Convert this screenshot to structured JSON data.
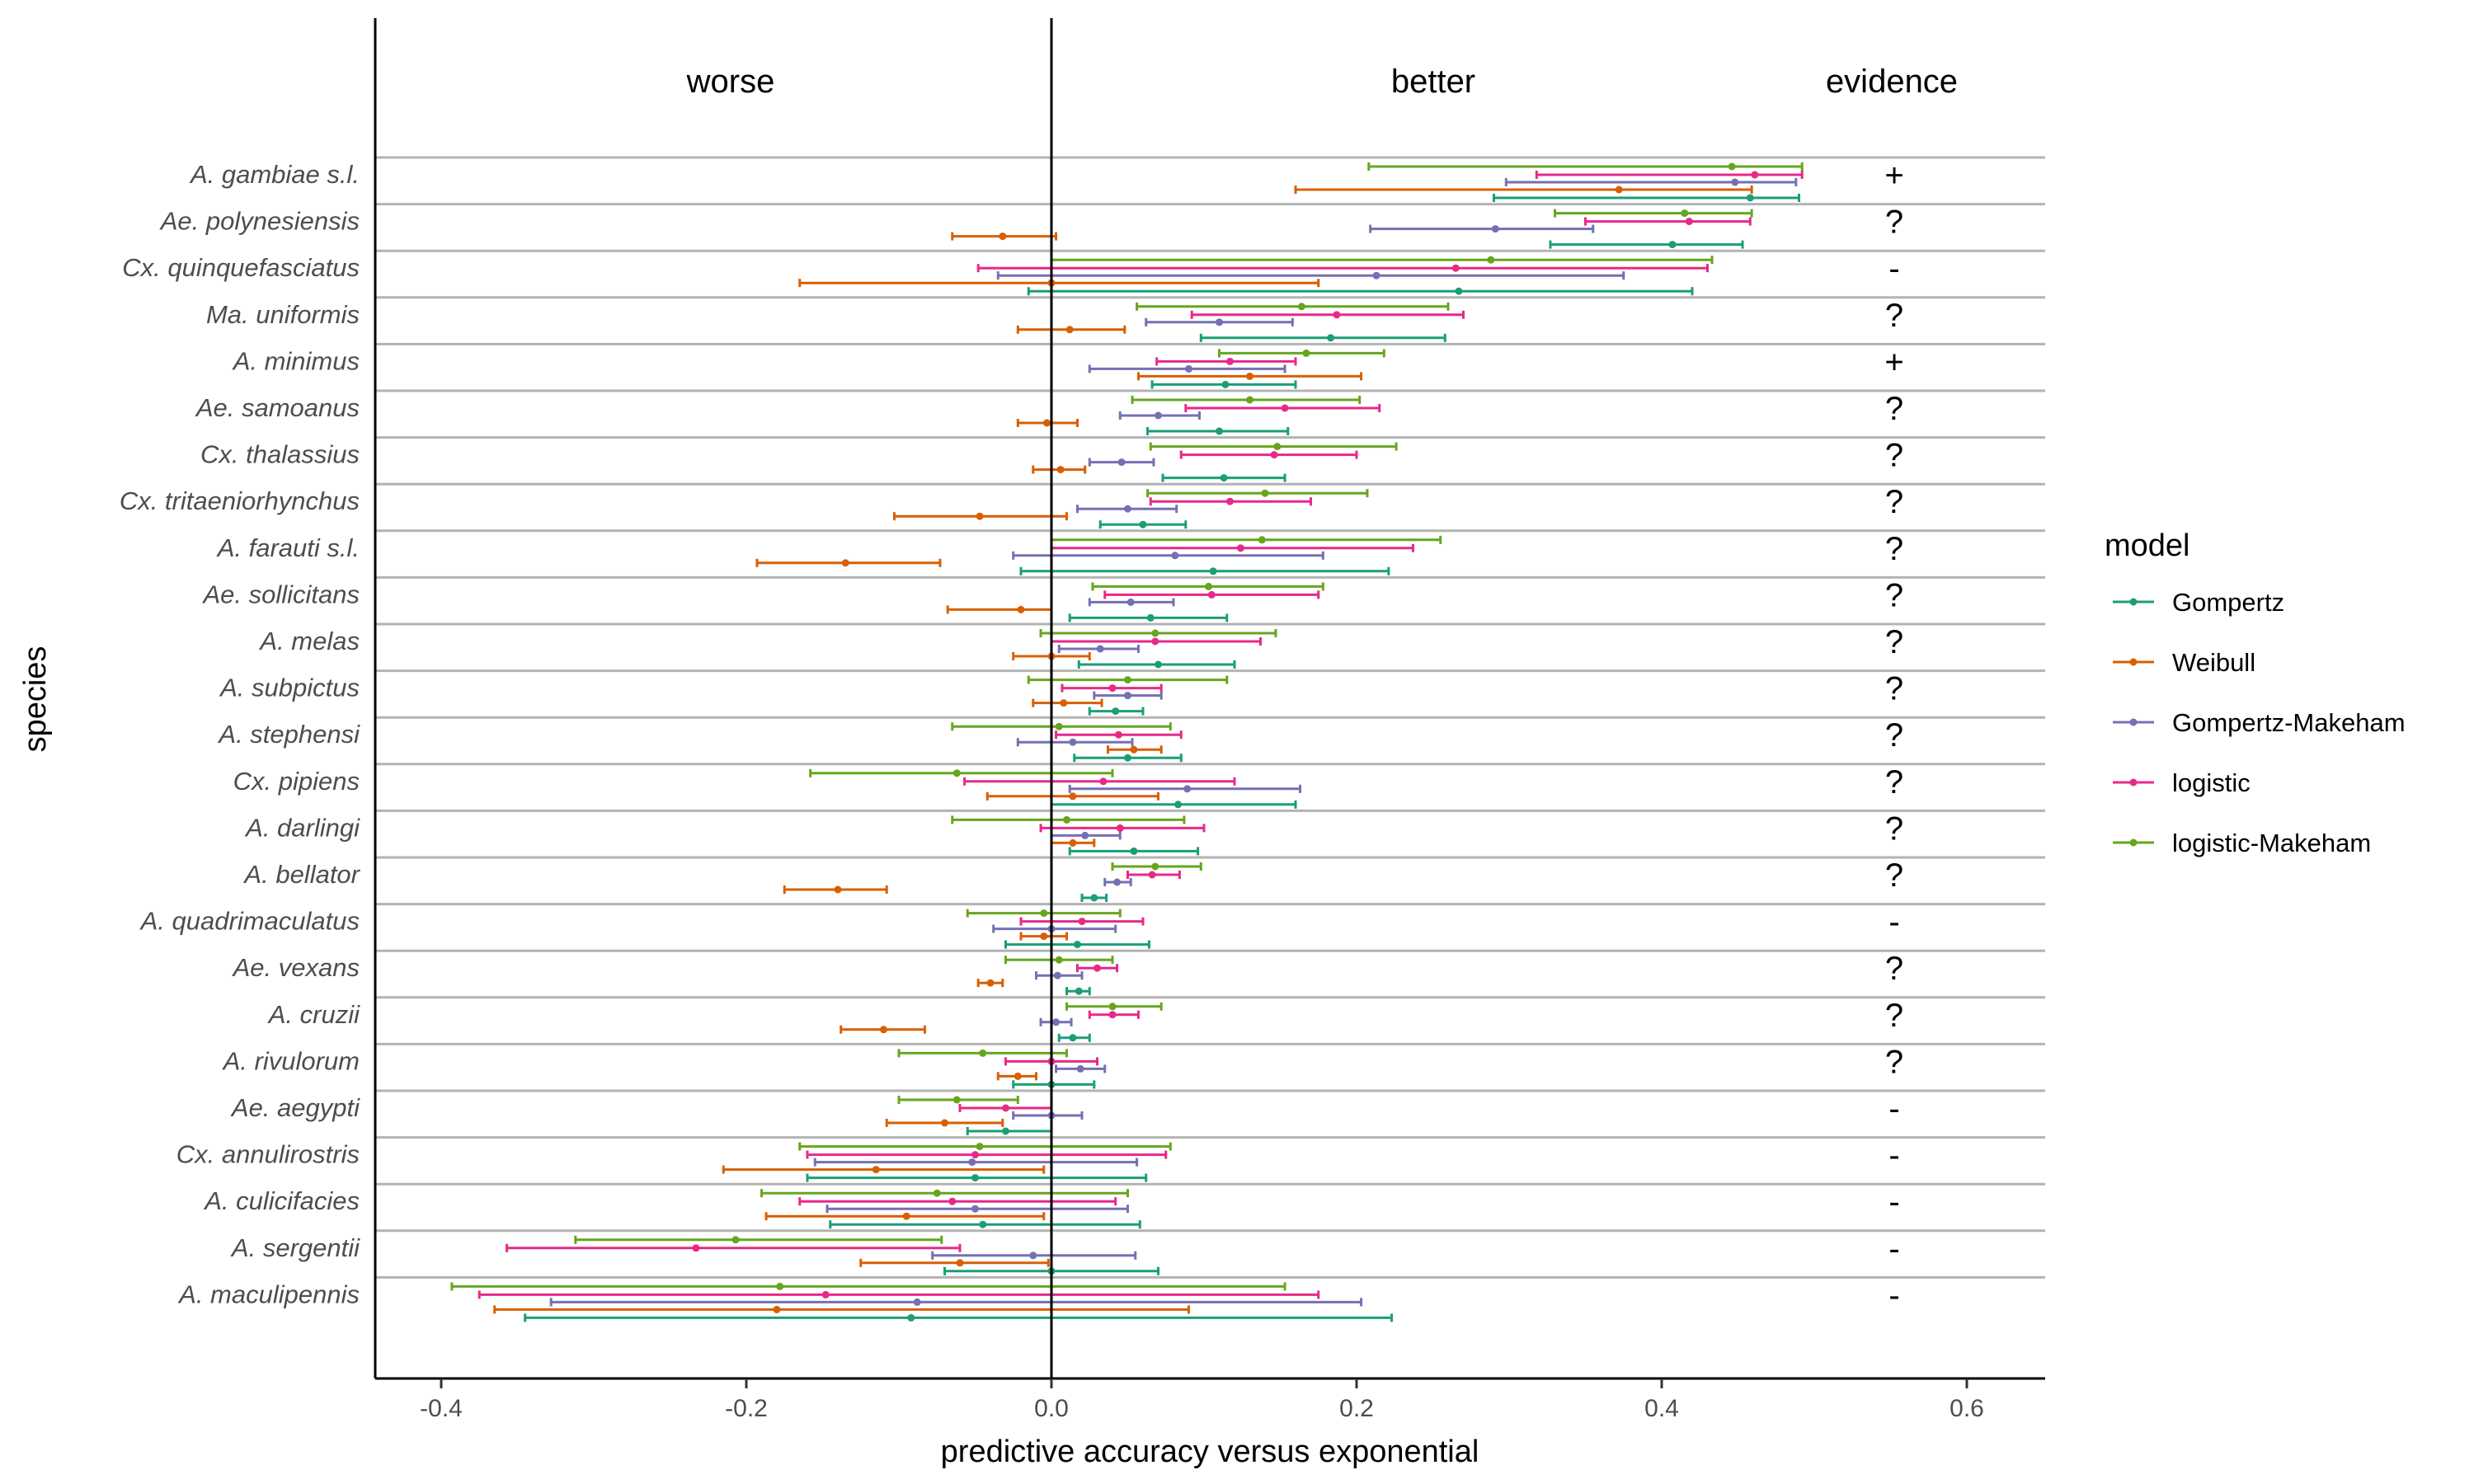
{
  "chart_data": {
    "type": "errorbar",
    "xlabel": "predictive accuracy versus exponential",
    "ylabel": "species",
    "xlim": [
      -0.44,
      0.65
    ],
    "xticks": [
      -0.4,
      -0.2,
      0.0,
      0.2,
      0.4,
      0.6
    ],
    "xtick_labels": [
      "-0.4",
      "-0.2",
      "0.0",
      "0.2",
      "0.4",
      "0.6"
    ],
    "header": {
      "worse": "worse",
      "better": "better",
      "evidence": "evidence"
    },
    "legend": {
      "title": "model",
      "position": "right"
    },
    "grid": false,
    "reference_line_x": 0,
    "series": [
      {
        "name": "Gompertz",
        "color": "#1b9e77"
      },
      {
        "name": "Weibull",
        "color": "#d95f02"
      },
      {
        "name": "Gompertz-Makeham",
        "color": "#7570b3"
      },
      {
        "name": "logistic",
        "color": "#e7298a"
      },
      {
        "name": "logistic-Makeham",
        "color": "#66a61e"
      }
    ],
    "species": [
      {
        "name": "A. gambiae s.l.",
        "evidence": "+",
        "estimates": [
          [
            0.458,
            0.29,
            0.49
          ],
          [
            0.372,
            0.16,
            0.459
          ],
          [
            0.448,
            0.298,
            0.488
          ],
          [
            0.461,
            0.318,
            0.492
          ],
          [
            0.446,
            0.208,
            0.492
          ]
        ]
      },
      {
        "name": "Ae. polynesiensis",
        "evidence": "?",
        "estimates": [
          [
            0.407,
            0.327,
            0.453
          ],
          [
            -0.032,
            -0.065,
            0.003
          ],
          [
            0.291,
            0.209,
            0.355
          ],
          [
            0.418,
            0.35,
            0.458
          ],
          [
            0.415,
            0.33,
            0.459
          ]
        ]
      },
      {
        "name": "Cx. quinquefasciatus",
        "evidence": "-",
        "estimates": [
          [
            0.267,
            -0.015,
            0.42
          ],
          [
            0.0,
            -0.165,
            0.175
          ],
          [
            0.213,
            -0.035,
            0.375
          ],
          [
            0.265,
            -0.048,
            0.43
          ],
          [
            0.288,
            0.0,
            0.433
          ]
        ]
      },
      {
        "name": "Ma. uniformis",
        "evidence": "?",
        "estimates": [
          [
            0.183,
            0.098,
            0.258
          ],
          [
            0.012,
            -0.022,
            0.048
          ],
          [
            0.11,
            0.062,
            0.158
          ],
          [
            0.187,
            0.092,
            0.27
          ],
          [
            0.164,
            0.056,
            0.26
          ]
        ]
      },
      {
        "name": "A. minimus",
        "evidence": "+",
        "estimates": [
          [
            0.114,
            0.066,
            0.16
          ],
          [
            0.13,
            0.057,
            0.203
          ],
          [
            0.09,
            0.025,
            0.153
          ],
          [
            0.117,
            0.069,
            0.16
          ],
          [
            0.167,
            0.11,
            0.218
          ]
        ]
      },
      {
        "name": "Ae. samoanus",
        "evidence": "?",
        "estimates": [
          [
            0.11,
            0.063,
            0.155
          ],
          [
            -0.003,
            -0.022,
            0.017
          ],
          [
            0.07,
            0.045,
            0.097
          ],
          [
            0.153,
            0.088,
            0.215
          ],
          [
            0.13,
            0.053,
            0.202
          ]
        ]
      },
      {
        "name": "Cx. thalassius",
        "evidence": "?",
        "estimates": [
          [
            0.113,
            0.073,
            0.153
          ],
          [
            0.006,
            -0.012,
            0.022
          ],
          [
            0.046,
            0.025,
            0.067
          ],
          [
            0.146,
            0.085,
            0.2
          ],
          [
            0.148,
            0.065,
            0.226
          ]
        ]
      },
      {
        "name": "Cx. tritaeniorhynchus",
        "evidence": "?",
        "estimates": [
          [
            0.06,
            0.032,
            0.088
          ],
          [
            -0.047,
            -0.103,
            0.01
          ],
          [
            0.05,
            0.017,
            0.082
          ],
          [
            0.117,
            0.065,
            0.17
          ],
          [
            0.14,
            0.063,
            0.207
          ]
        ]
      },
      {
        "name": "A. farauti s.l.",
        "evidence": "?",
        "estimates": [
          [
            0.106,
            -0.02,
            0.221
          ],
          [
            -0.135,
            -0.193,
            -0.073
          ],
          [
            0.081,
            -0.025,
            0.178
          ],
          [
            0.124,
            0.0,
            0.237
          ],
          [
            0.138,
            0.0,
            0.255
          ]
        ]
      },
      {
        "name": "Ae. sollicitans",
        "evidence": "?",
        "estimates": [
          [
            0.065,
            0.012,
            0.115
          ],
          [
            -0.02,
            -0.068,
            0.0
          ],
          [
            0.052,
            0.025,
            0.08
          ],
          [
            0.105,
            0.035,
            0.175
          ],
          [
            0.103,
            0.027,
            0.178
          ]
        ]
      },
      {
        "name": "A. melas",
        "evidence": "?",
        "estimates": [
          [
            0.07,
            0.018,
            0.12
          ],
          [
            0.0,
            -0.025,
            0.025
          ],
          [
            0.032,
            0.005,
            0.057
          ],
          [
            0.068,
            0.0,
            0.137
          ],
          [
            0.068,
            -0.007,
            0.147
          ]
        ]
      },
      {
        "name": "A. subpictus",
        "evidence": "?",
        "estimates": [
          [
            0.042,
            0.025,
            0.06
          ],
          [
            0.008,
            -0.012,
            0.033
          ],
          [
            0.05,
            0.028,
            0.072
          ],
          [
            0.04,
            0.007,
            0.072
          ],
          [
            0.05,
            -0.015,
            0.115
          ]
        ]
      },
      {
        "name": "A. stephensi",
        "evidence": "?",
        "estimates": [
          [
            0.05,
            0.015,
            0.085
          ],
          [
            0.054,
            0.037,
            0.072
          ],
          [
            0.014,
            -0.022,
            0.053
          ],
          [
            0.044,
            0.003,
            0.085
          ],
          [
            0.005,
            -0.065,
            0.078
          ]
        ]
      },
      {
        "name": "Cx. pipiens",
        "evidence": "?",
        "estimates": [
          [
            0.083,
            0.0,
            0.16
          ],
          [
            0.014,
            -0.042,
            0.07
          ],
          [
            0.089,
            0.012,
            0.163
          ],
          [
            0.034,
            -0.057,
            0.12
          ],
          [
            -0.062,
            -0.158,
            0.04
          ]
        ]
      },
      {
        "name": "A. darlingi",
        "evidence": "?",
        "estimates": [
          [
            0.054,
            0.012,
            0.096
          ],
          [
            0.014,
            0.0,
            0.028
          ],
          [
            0.022,
            0.0,
            0.045
          ],
          [
            0.045,
            -0.007,
            0.1
          ],
          [
            0.01,
            -0.065,
            0.087
          ]
        ]
      },
      {
        "name": "A. bellator",
        "evidence": "?",
        "estimates": [
          [
            0.028,
            0.02,
            0.036
          ],
          [
            -0.14,
            -0.175,
            -0.108
          ],
          [
            0.043,
            0.035,
            0.052
          ],
          [
            0.066,
            0.05,
            0.084
          ],
          [
            0.068,
            0.04,
            0.098
          ]
        ]
      },
      {
        "name": "A. quadrimaculatus",
        "evidence": "-",
        "estimates": [
          [
            0.017,
            -0.03,
            0.064
          ],
          [
            -0.005,
            -0.02,
            0.01
          ],
          [
            0.0,
            -0.038,
            0.042
          ],
          [
            0.02,
            -0.02,
            0.06
          ],
          [
            -0.005,
            -0.055,
            0.045
          ]
        ]
      },
      {
        "name": "Ae. vexans",
        "evidence": "?",
        "estimates": [
          [
            0.018,
            0.01,
            0.025
          ],
          [
            -0.04,
            -0.048,
            -0.032
          ],
          [
            0.004,
            -0.01,
            0.02
          ],
          [
            0.03,
            0.017,
            0.043
          ],
          [
            0.005,
            -0.03,
            0.04
          ]
        ]
      },
      {
        "name": "A. cruzii",
        "evidence": "?",
        "estimates": [
          [
            0.014,
            0.005,
            0.025
          ],
          [
            -0.11,
            -0.138,
            -0.083
          ],
          [
            0.003,
            -0.007,
            0.013
          ],
          [
            0.04,
            0.025,
            0.057
          ],
          [
            0.04,
            0.01,
            0.072
          ]
        ]
      },
      {
        "name": "A. rivulorum",
        "evidence": "?",
        "estimates": [
          [
            0.0,
            -0.025,
            0.028
          ],
          [
            -0.022,
            -0.035,
            -0.01
          ],
          [
            0.019,
            0.003,
            0.035
          ],
          [
            0.0,
            -0.03,
            0.03
          ],
          [
            -0.045,
            -0.1,
            0.01
          ]
        ]
      },
      {
        "name": "Ae. aegypti",
        "evidence": "-",
        "estimates": [
          [
            -0.03,
            -0.055,
            0.0
          ],
          [
            -0.07,
            -0.108,
            -0.032
          ],
          [
            0.0,
            -0.025,
            0.02
          ],
          [
            -0.03,
            -0.06,
            0.0
          ],
          [
            -0.062,
            -0.1,
            -0.022
          ]
        ]
      },
      {
        "name": "Cx. annulirostris",
        "evidence": "-",
        "estimates": [
          [
            -0.05,
            -0.16,
            0.062
          ],
          [
            -0.115,
            -0.215,
            -0.005
          ],
          [
            -0.052,
            -0.155,
            0.056
          ],
          [
            -0.05,
            -0.16,
            0.075
          ],
          [
            -0.047,
            -0.165,
            0.078
          ]
        ]
      },
      {
        "name": "A. culicifacies",
        "evidence": "-",
        "estimates": [
          [
            -0.045,
            -0.145,
            0.058
          ],
          [
            -0.095,
            -0.187,
            -0.005
          ],
          [
            -0.05,
            -0.147,
            0.05
          ],
          [
            -0.065,
            -0.165,
            0.042
          ],
          [
            -0.075,
            -0.19,
            0.05
          ]
        ]
      },
      {
        "name": "A. sergentii",
        "evidence": "-",
        "estimates": [
          [
            0.0,
            -0.07,
            0.07
          ],
          [
            -0.06,
            -0.125,
            -0.002
          ],
          [
            -0.012,
            -0.078,
            0.055
          ],
          [
            -0.233,
            -0.357,
            -0.06
          ],
          [
            -0.207,
            -0.312,
            -0.072
          ]
        ]
      },
      {
        "name": "A. maculipennis",
        "evidence": "-",
        "estimates": [
          [
            -0.092,
            -0.345,
            0.223
          ],
          [
            -0.18,
            -0.365,
            0.09
          ],
          [
            -0.088,
            -0.328,
            0.203
          ],
          [
            -0.148,
            -0.375,
            0.175
          ],
          [
            -0.178,
            -0.393,
            0.153
          ]
        ]
      }
    ]
  }
}
